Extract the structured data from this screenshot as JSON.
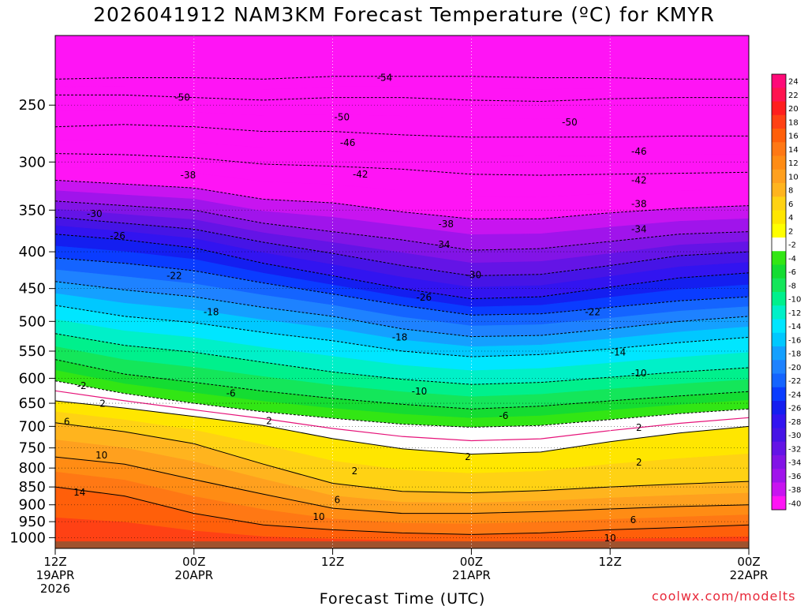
{
  "chart_data": {
    "type": "heatmap",
    "title": "2026041912 NAM3KM Forecast Temperature (ºC) for KMYR",
    "xlabel": "Forecast Time (UTC)",
    "ylabel": "",
    "y_scale": "log",
    "y_reversed": true,
    "y_ticks": [
      "250",
      "300",
      "350",
      "400",
      "450",
      "500",
      "550",
      "600",
      "650",
      "700",
      "750",
      "800",
      "850",
      "900",
      "950",
      "1000"
    ],
    "y_values": [
      250,
      300,
      350,
      400,
      450,
      500,
      550,
      600,
      650,
      700,
      750,
      800,
      850,
      900,
      950,
      1000
    ],
    "ylim": [
      1035,
      200
    ],
    "xlim": [
      0,
      60
    ],
    "x_ticks": [
      {
        "x": 0,
        "label": [
          "12Z",
          "19APR",
          "2026"
        ]
      },
      {
        "x": 12,
        "label": [
          "00Z",
          "20APR"
        ]
      },
      {
        "x": 24,
        "label": [
          "12Z"
        ]
      },
      {
        "x": 36,
        "label": [
          "00Z",
          "21APR"
        ]
      },
      {
        "x": 48,
        "label": [
          "12Z"
        ]
      },
      {
        "x": 60,
        "label": [
          "00Z",
          "22APR"
        ]
      }
    ],
    "colorbar": {
      "labels": [
        "24",
        "22",
        "20",
        "18",
        "16",
        "14",
        "12",
        "10",
        "8",
        "6",
        "4",
        "2",
        "-2",
        "-4",
        "-6",
        "-8",
        "-10",
        "-12",
        "-14",
        "-16",
        "-18",
        "-20",
        "-22",
        "-24",
        "-26",
        "-28",
        "-30",
        "-32",
        "-34",
        "-36",
        "-38",
        "-40"
      ],
      "colors": [
        "#ff0a78",
        "#ff1450",
        "#ff1e1e",
        "#ff4114",
        "#ff5f0a",
        "#ff7814",
        "#ff8c14",
        "#ffa01e",
        "#ffb41e",
        "#ffd214",
        "#ffe600",
        "#ffff00",
        "#ffffff",
        "#32e614",
        "#14dc32",
        "#14e65a",
        "#00f08c",
        "#00f0c8",
        "#00e6ff",
        "#00c8ff",
        "#14a0ff",
        "#1e82ff",
        "#1464ff",
        "#0a3cff",
        "#141ef0",
        "#3214f0",
        "#4614e6",
        "#6414e6",
        "#8214e6",
        "#a014eb",
        "#c814f0",
        "#ff14f5"
      ]
    },
    "isotherms": [
      {
        "value": -54,
        "p": [
          230,
          229,
          229,
          230,
          228,
          228,
          228,
          229,
          229,
          230,
          230
        ]
      },
      {
        "value": -50,
        "p": [
          242,
          242,
          244,
          246,
          244,
          244,
          246,
          247,
          245,
          244,
          244
        ]
      },
      {
        "value": -46,
        "p": [
          268,
          266,
          268,
          272,
          272,
          275,
          277,
          277,
          277,
          276,
          276
        ]
      },
      {
        "value": -42,
        "p": [
          292,
          293,
          296,
          302,
          304,
          307,
          312,
          313,
          312,
          311,
          310
        ]
      },
      {
        "value": -38,
        "p": [
          318,
          322,
          326,
          338,
          342,
          352,
          360,
          360,
          353,
          348,
          345
        ]
      },
      {
        "value": -34,
        "p": [
          340,
          345,
          350,
          365,
          375,
          385,
          398,
          396,
          387,
          378,
          375
        ]
      },
      {
        "value": -30,
        "p": [
          358,
          365,
          372,
          388,
          402,
          418,
          432,
          430,
          418,
          405,
          400
        ]
      },
      {
        "value": -26,
        "p": [
          378,
          385,
          395,
          415,
          432,
          450,
          465,
          462,
          448,
          435,
          428
        ]
      },
      {
        "value": -22,
        "p": [
          408,
          415,
          425,
          442,
          458,
          475,
          490,
          488,
          478,
          468,
          462
        ]
      },
      {
        "value": -18,
        "p": [
          440,
          452,
          462,
          478,
          492,
          512,
          525,
          523,
          512,
          500,
          492
        ]
      },
      {
        "value": -14,
        "p": [
          475,
          492,
          502,
          518,
          532,
          550,
          560,
          556,
          546,
          535,
          526
        ]
      },
      {
        "value": -10,
        "p": [
          520,
          540,
          552,
          570,
          588,
          602,
          612,
          608,
          598,
          588,
          580
        ]
      },
      {
        "value": -6,
        "p": [
          565,
          592,
          608,
          625,
          640,
          652,
          662,
          656,
          645,
          635,
          626
        ]
      },
      {
        "value": -2,
        "p": [
          605,
          630,
          650,
          668,
          682,
          695,
          702,
          698,
          685,
          672,
          662
        ]
      },
      {
        "value": 2,
        "p": [
          645,
          660,
          678,
          698,
          728,
          752,
          765,
          760,
          735,
          715,
          700
        ]
      },
      {
        "value": 6,
        "p": [
          692,
          712,
          740,
          790,
          840,
          862,
          866,
          860,
          850,
          842,
          835
        ]
      },
      {
        "value": 10,
        "p": [
          772,
          790,
          830,
          870,
          910,
          925,
          925,
          920,
          912,
          905,
          900
        ]
      },
      {
        "value": 14,
        "p": [
          850,
          875,
          925,
          960,
          975,
          985,
          990,
          985,
          975,
          968,
          960
        ]
      }
    ],
    "labels_on_chart": [
      {
        "t": "-54",
        "x": 28.5,
        "p": 229
      },
      {
        "t": "-50",
        "x": 11,
        "p": 244
      },
      {
        "t": "-50",
        "x": 24.8,
        "p": 260
      },
      {
        "t": "-50",
        "x": 44.5,
        "p": 264
      },
      {
        "t": "-46",
        "x": 25.3,
        "p": 282
      },
      {
        "t": "-46",
        "x": 50.5,
        "p": 290
      },
      {
        "t": "-42",
        "x": 26.4,
        "p": 312
      },
      {
        "t": "-42",
        "x": 50.5,
        "p": 318
      },
      {
        "t": "-38",
        "x": 11.5,
        "p": 313
      },
      {
        "t": "-38",
        "x": 33.8,
        "p": 366
      },
      {
        "t": "-38",
        "x": 50.5,
        "p": 343
      },
      {
        "t": "-34",
        "x": 33.5,
        "p": 391
      },
      {
        "t": "-34",
        "x": 50.5,
        "p": 372
      },
      {
        "t": "-30",
        "x": 3.4,
        "p": 354
      },
      {
        "t": "-30",
        "x": 36.2,
        "p": 431
      },
      {
        "t": "-26",
        "x": 5.4,
        "p": 380
      },
      {
        "t": "-26",
        "x": 31.9,
        "p": 463
      },
      {
        "t": "-22",
        "x": 10.3,
        "p": 432
      },
      {
        "t": "-22",
        "x": 46.5,
        "p": 485
      },
      {
        "t": "-18",
        "x": 13.5,
        "p": 485
      },
      {
        "t": "-18",
        "x": 29.8,
        "p": 526
      },
      {
        "t": "-14",
        "x": 48.7,
        "p": 552
      },
      {
        "t": "-10",
        "x": 31.5,
        "p": 626
      },
      {
        "t": "-10",
        "x": 50.5,
        "p": 590
      },
      {
        "t": "-6",
        "x": 15.2,
        "p": 630
      },
      {
        "t": "-6",
        "x": 38.8,
        "p": 677
      },
      {
        "t": "-2",
        "x": 2.3,
        "p": 615
      },
      {
        "t": "2",
        "x": 4.1,
        "p": 651
      },
      {
        "t": "2",
        "x": 18.5,
        "p": 688
      },
      {
        "t": "2",
        "x": 35.7,
        "p": 772
      },
      {
        "t": "2",
        "x": 25.9,
        "p": 808
      },
      {
        "t": "2",
        "x": 50.5,
        "p": 703
      },
      {
        "t": "2",
        "x": 50.5,
        "p": 786
      },
      {
        "t": "6",
        "x": 1,
        "p": 690
      },
      {
        "t": "6",
        "x": 24.4,
        "p": 886
      },
      {
        "t": "6",
        "x": 50,
        "p": 945
      },
      {
        "t": "10",
        "x": 4,
        "p": 768
      },
      {
        "t": "10",
        "x": 22.8,
        "p": 936
      },
      {
        "t": "10",
        "x": 48,
        "p": 1002
      },
      {
        "t": "14",
        "x": 2.1,
        "p": 865
      }
    ]
  },
  "watermark": "coolwx.com/modelts"
}
